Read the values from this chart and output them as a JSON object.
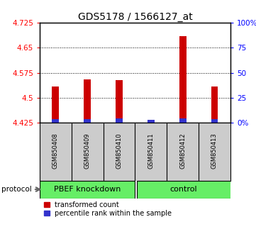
{
  "title": "GDS5178 / 1566127_at",
  "samples": [
    "GSM850408",
    "GSM850409",
    "GSM850410",
    "GSM850411",
    "GSM850412",
    "GSM850413"
  ],
  "transformed_count": [
    4.535,
    4.555,
    4.553,
    4.433,
    4.685,
    4.535
  ],
  "base": 4.425,
  "blue_top": [
    4.437,
    4.437,
    4.438,
    4.435,
    4.438,
    4.437
  ],
  "ylim": [
    4.425,
    4.725
  ],
  "yticks_left": [
    4.425,
    4.5,
    4.575,
    4.65,
    4.725
  ],
  "ytick_labels_left": [
    "4.425",
    "4.5",
    "4.575",
    "4.65",
    "4.725"
  ],
  "yticks_right_pct": [
    0,
    25,
    50,
    75,
    100
  ],
  "ytick_labels_right": [
    "0%",
    "25",
    "50",
    "75",
    "100%"
  ],
  "group1_label": "PBEF knockdown",
  "group2_label": "control",
  "protocol_label": "protocol",
  "bar_width": 0.22,
  "red_color": "#CC0000",
  "blue_color": "#3333CC",
  "bg_plot": "#FFFFFF",
  "bg_label": "#CCCCCC",
  "bg_group": "#66EE66",
  "title_fontsize": 10,
  "tick_fontsize": 7.5,
  "sample_fontsize": 6,
  "group_fontsize": 8,
  "legend_fontsize": 7
}
